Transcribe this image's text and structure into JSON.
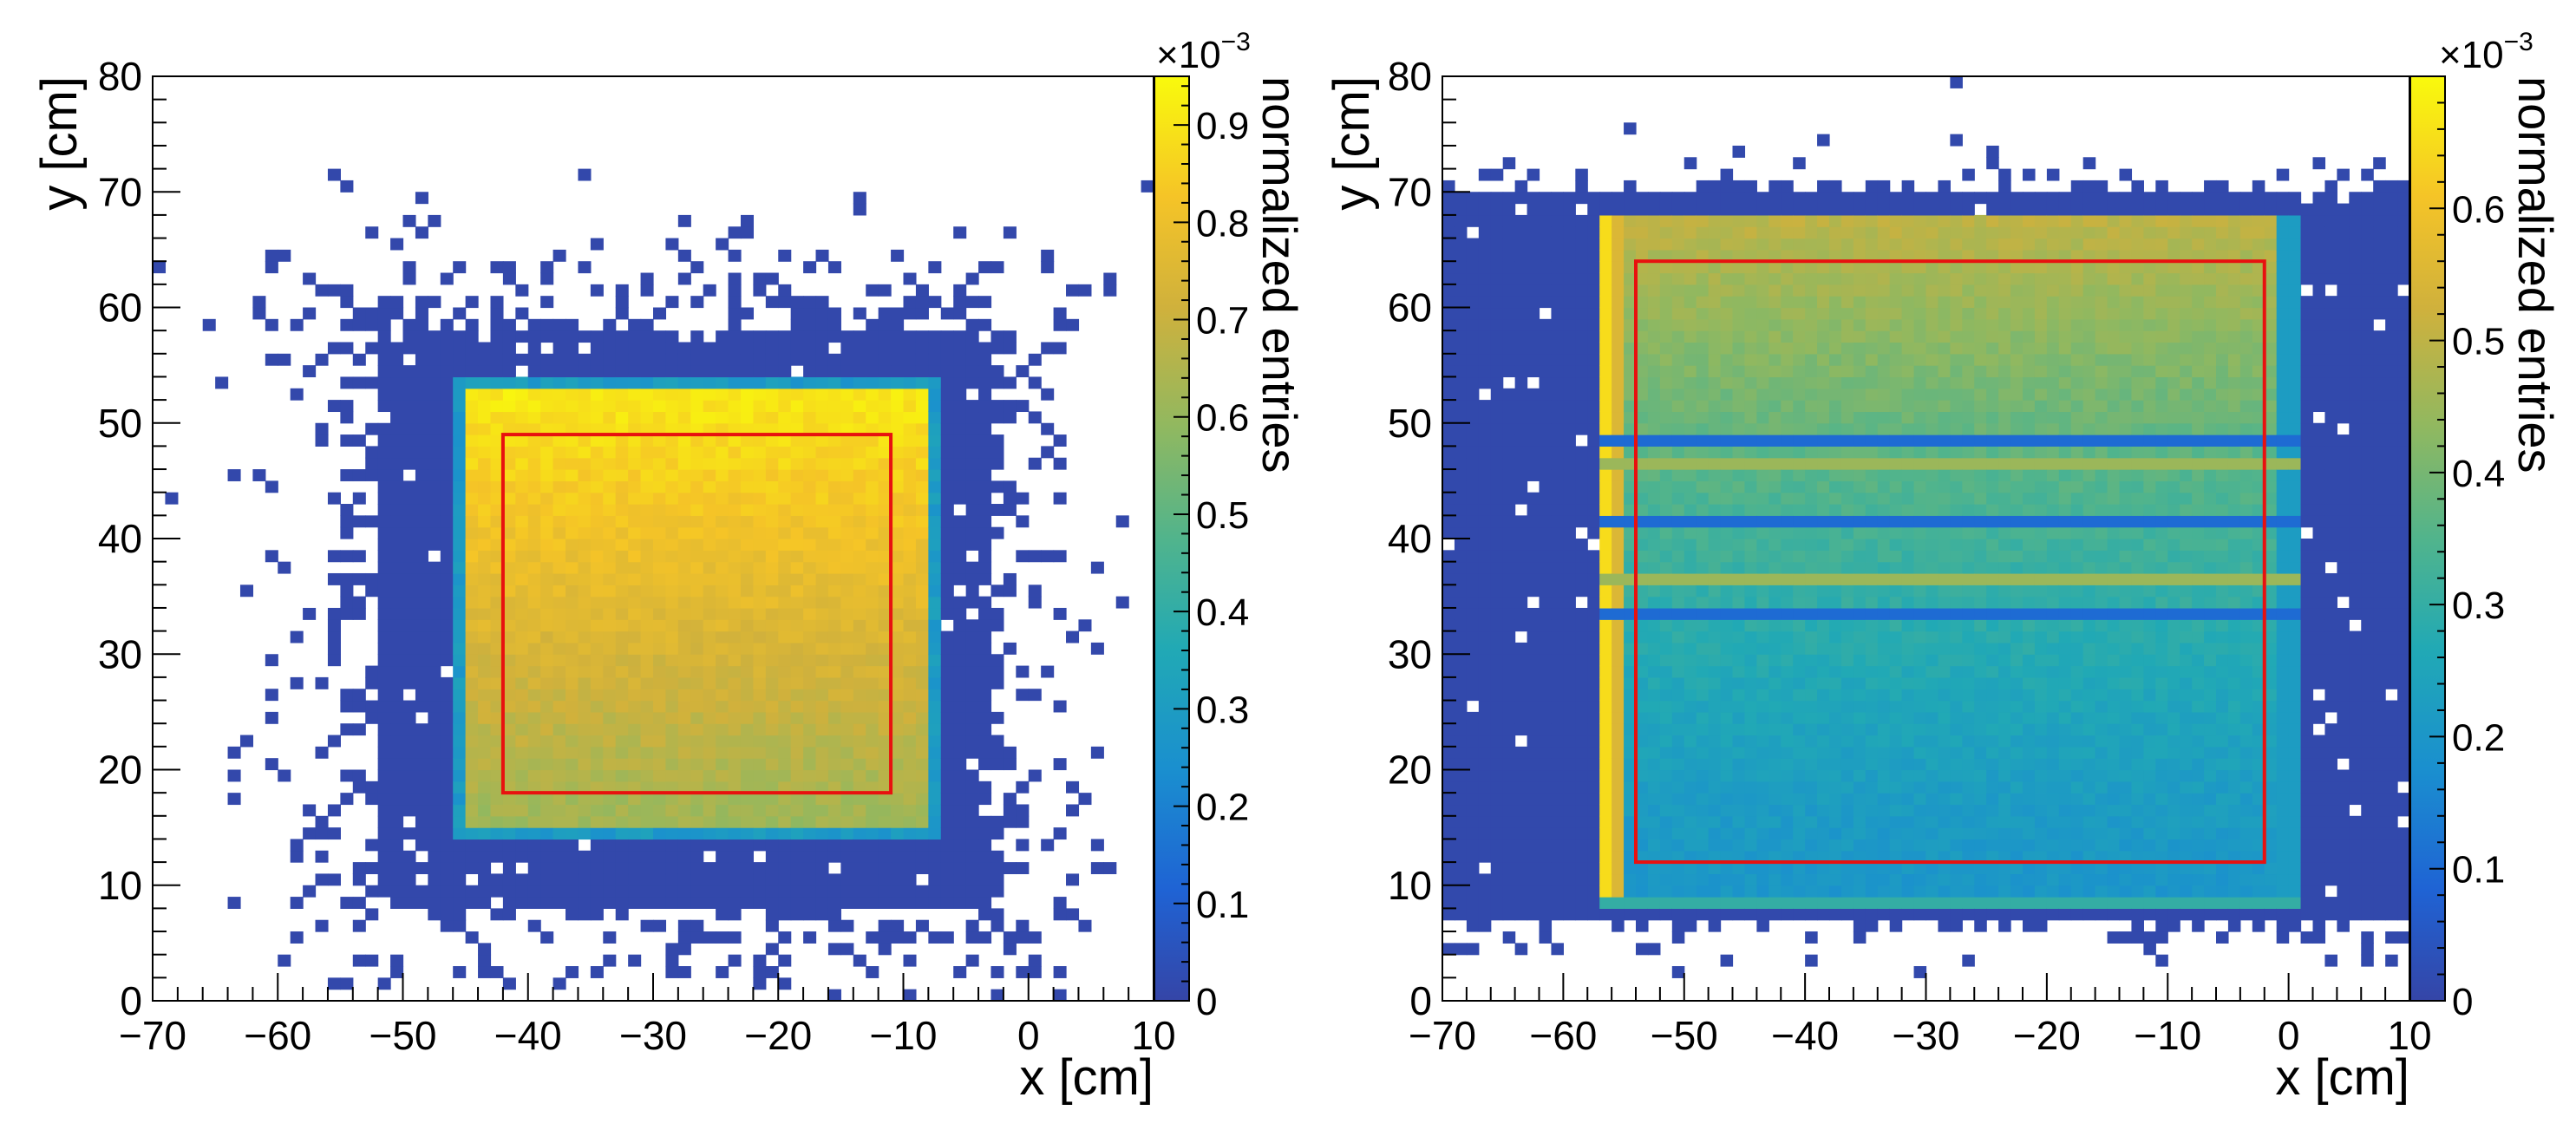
{
  "chart_data": [
    {
      "type": "heatmap",
      "panel": "left",
      "xlabel": "x [cm]",
      "ylabel": "y [cm]",
      "xlim": [
        -70,
        10
      ],
      "ylim": [
        0,
        80
      ],
      "x_ticks": [
        "−70",
        "−60",
        "−50",
        "−40",
        "−30",
        "−20",
        "−10",
        "0",
        "10"
      ],
      "y_ticks": [
        "0",
        "10",
        "20",
        "30",
        "40",
        "50",
        "60",
        "70",
        "80"
      ],
      "bin_size_cm": 1,
      "colorbar": {
        "label": "normalized entries",
        "exponent": "×10",
        "exponent_power": "−3",
        "range": [
          0,
          0.95
        ],
        "ticks": [
          "0",
          "0.1",
          "0.2",
          "0.3",
          "0.4",
          "0.5",
          "0.6",
          "0.7",
          "0.8",
          "0.9"
        ]
      },
      "acceptance_region": {
        "x": [
          -46,
          -7
        ],
        "y": [
          14,
          54
        ]
      },
      "halo_region": {
        "x": [
          -52,
          -3
        ],
        "y": [
          8,
          58
        ]
      },
      "signal_value_range": [
        0.55,
        0.92
      ],
      "fiducial_box": {
        "x": [
          -42,
          -11
        ],
        "y": [
          18,
          49
        ],
        "color": "#e8110f"
      }
    },
    {
      "type": "heatmap",
      "panel": "right",
      "xlabel": "x [cm]",
      "ylabel": "y [cm]",
      "xlim": [
        -70,
        10
      ],
      "ylim": [
        0,
        80
      ],
      "x_ticks": [
        "−70",
        "−60",
        "−50",
        "−40",
        "−30",
        "−20",
        "−10",
        "0",
        "10"
      ],
      "y_ticks": [
        "0",
        "10",
        "20",
        "30",
        "40",
        "50",
        "60",
        "70",
        "80"
      ],
      "bin_size_cm": 1,
      "colorbar": {
        "label": "normalized entries",
        "exponent": "×10",
        "exponent_power": "−3",
        "range": [
          0,
          0.7
        ],
        "ticks": [
          "0",
          "0.1",
          "0.2",
          "0.3",
          "0.4",
          "0.5",
          "0.6"
        ]
      },
      "acceptance_region": {
        "x": [
          -57,
          1
        ],
        "y": [
          8,
          68
        ]
      },
      "halo_region": {
        "x": [
          -70,
          10
        ],
        "y": [
          7,
          70
        ]
      },
      "signal_value_range": [
        0.2,
        0.6
      ],
      "horizontal_stripes_y": [
        33.5,
        36.5,
        41.5,
        46.5,
        48.5
      ],
      "fiducial_box": {
        "x": [
          -54,
          -2
        ],
        "y": [
          12,
          64
        ],
        "color": "#e8110f"
      }
    }
  ]
}
